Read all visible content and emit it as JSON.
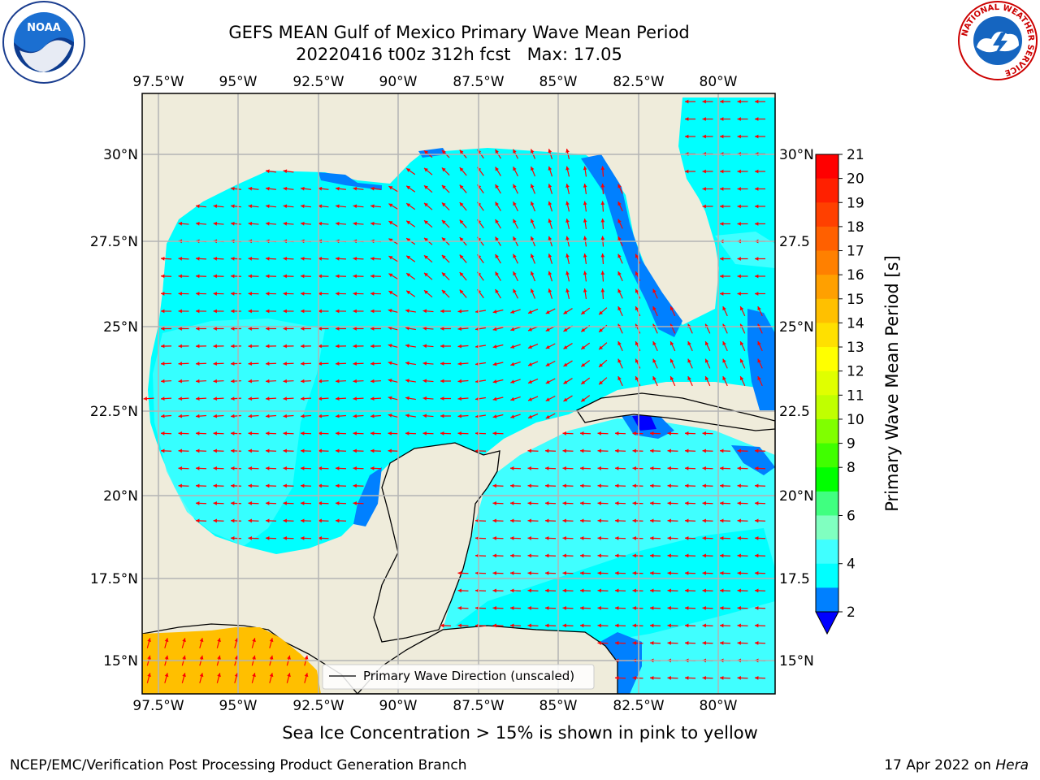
{
  "header": {
    "title_line1": "GEFS MEAN Gulf of Mexico Primary Wave Mean Period",
    "title_line2": "20220416 t00z 312h fcst   Max: 17.05"
  },
  "logos": {
    "left": "noaa-logo",
    "right": "national-weather-service-logo",
    "right_ring_text": "NATIONAL WEATHER SERVICE"
  },
  "map": {
    "lon_labels": [
      "97.5°W",
      "95°W",
      "92.5°W",
      "90°W",
      "87.5°W",
      "85°W",
      "82.5°W",
      "80°W"
    ],
    "lat_labels_left": [
      "30°N",
      "27.5°N",
      "25°N",
      "22.5°N",
      "20°N",
      "17.5°N",
      "15°N"
    ],
    "lat_labels_right": [
      "30°N",
      "27.5",
      "25°N",
      "22.5",
      "20°N",
      "17.5",
      "15°N"
    ],
    "legend_label": "Primary Wave Direction (unscaled)",
    "colors": {
      "land": "#efecdb",
      "ocean_main": "#00ffff",
      "ocean_light": "#40ffff",
      "ocean_shallow": "#0080ff",
      "ocean_very_shallow": "#0000ff",
      "ice_region": "#ffbf00",
      "arrow": "#ff0000",
      "grid": "#b4b4b4"
    }
  },
  "colorbar": {
    "label": "Primary Wave Mean Period [s]",
    "ticks": [
      "21",
      "20",
      "19",
      "18",
      "17",
      "16",
      "15",
      "14",
      "13",
      "12",
      "11",
      "10",
      "9",
      "8",
      "6",
      "4",
      "2"
    ],
    "colors": [
      "#ff0000",
      "#ff2000",
      "#ff4000",
      "#ff6000",
      "#ff8000",
      "#ffa000",
      "#ffc000",
      "#ffe000",
      "#ffff00",
      "#e0ff00",
      "#c0ff00",
      "#80ff00",
      "#40ff00",
      "#00ff00",
      "#40ff80",
      "#80ffc0",
      "#40ffff",
      "#00ffff",
      "#0080ff"
    ],
    "underflow_color": "#0000ff"
  },
  "footer": {
    "sea_ice_note": "Sea Ice Concentration > 15% is shown in pink to yellow",
    "left": "NCEP/EMC/Verification Post Processing Product Generation Branch",
    "right_date": "17 Apr 2022 on",
    "right_host": "Hera"
  }
}
